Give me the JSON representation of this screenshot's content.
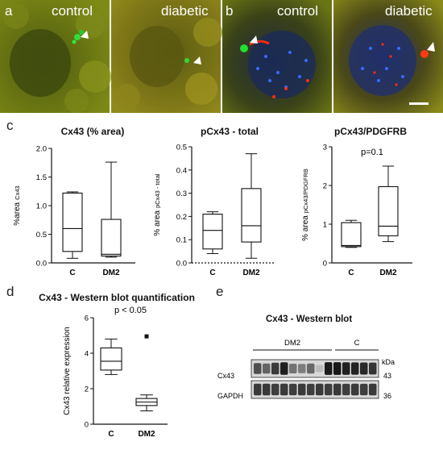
{
  "panels": {
    "a": {
      "letter": "a",
      "label_left": "control",
      "label_right": "diabetic"
    },
    "b": {
      "letter": "b",
      "label_left": "control",
      "label_right": "diabetic"
    },
    "c": {
      "letter": "c"
    },
    "d": {
      "letter": "d"
    },
    "e": {
      "letter": "e"
    }
  },
  "colors": {
    "yellow_tissue": "#6f7a12",
    "green_signal": "#22dd33",
    "red_signal": "#ff2a12",
    "blue_nuclei": "#1d48c8"
  },
  "chart_data": [
    {
      "type": "box",
      "title": "Cx43 (% area)",
      "ylabel_main": "%area",
      "ylabel_sub": "Cx43",
      "ylim": [
        0,
        2.0
      ],
      "yticks": [
        "0.0",
        "0.5",
        "1.0",
        "1.5",
        "2.0"
      ],
      "categories": [
        "C",
        "DM2"
      ],
      "boxes": [
        {
          "min": 0.08,
          "q1": 0.2,
          "median": 0.6,
          "q3": 1.22,
          "max": 1.24
        },
        {
          "min": 0.1,
          "q1": 0.12,
          "median": 0.15,
          "q3": 0.76,
          "max": 1.76
        }
      ]
    },
    {
      "type": "box",
      "title": "pCx43 - total",
      "ylabel_main": "% area",
      "ylabel_sub": "pCx43 - total",
      "ylim": [
        0,
        0.5
      ],
      "yticks": [
        "0.0",
        "0.1",
        "0.2",
        "0.3",
        "0.4",
        "0.5"
      ],
      "categories": [
        "C",
        "DM2"
      ],
      "boxes": [
        {
          "min": 0.04,
          "q1": 0.06,
          "median": 0.14,
          "q3": 0.21,
          "max": 0.22
        },
        {
          "min": 0.02,
          "q1": 0.09,
          "median": 0.16,
          "q3": 0.32,
          "max": 0.47
        }
      ]
    },
    {
      "type": "box",
      "title": "pCx43/PDGFRB",
      "annotation": "p=0.1",
      "ylabel_main": "% area",
      "ylabel_sub": "pCx43/PDGFRB",
      "ylim": [
        0,
        3
      ],
      "yticks": [
        "0",
        "1",
        "2",
        "3"
      ],
      "categories": [
        "C",
        "DM2"
      ],
      "boxes": [
        {
          "min": 0.4,
          "q1": 0.42,
          "median": 0.45,
          "q3": 1.04,
          "max": 1.1
        },
        {
          "min": 0.55,
          "q1": 0.7,
          "median": 0.95,
          "q3": 1.97,
          "max": 2.5
        }
      ]
    },
    {
      "type": "box",
      "title": "Cx43 - Western blot quantification",
      "annotation": "p < 0.05",
      "ylabel_main": "Cx43 relative expression",
      "ylim": [
        0,
        6
      ],
      "yticks": [
        "0",
        "2",
        "4",
        "6"
      ],
      "categories": [
        "C",
        "DM2"
      ],
      "boxes": [
        {
          "min": 2.8,
          "q1": 3.05,
          "median": 3.55,
          "q3": 4.3,
          "max": 4.8
        },
        {
          "min": 0.75,
          "q1": 1.05,
          "median": 1.25,
          "q3": 1.45,
          "max": 1.65,
          "outliers": [
            4.95
          ]
        }
      ]
    }
  ],
  "western_blot": {
    "title": "Cx43 - Western blot",
    "group_dm2": "DM2",
    "group_c": "C",
    "kda_label": "kDa",
    "rows": [
      {
        "label": "Cx43",
        "kda": "43",
        "intensities": [
          0.72,
          0.62,
          0.82,
          0.95,
          0.55,
          0.5,
          0.6,
          0.2,
          0.97,
          0.98,
          0.95,
          0.93,
          0.9,
          0.85
        ]
      },
      {
        "label": "GAPDH",
        "kda": "36",
        "intensities": [
          0.82,
          0.82,
          0.8,
          0.82,
          0.8,
          0.82,
          0.8,
          0.82,
          0.8,
          0.82,
          0.8,
          0.82,
          0.8,
          0.82
        ]
      }
    ]
  }
}
